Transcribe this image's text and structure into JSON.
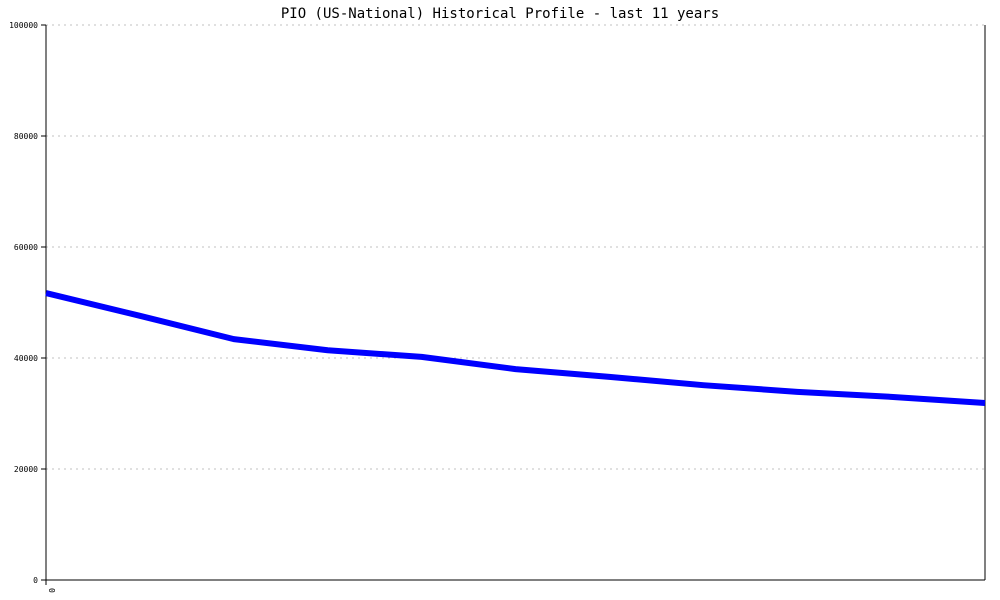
{
  "chart_data": {
    "type": "line",
    "title": "PIO (US-National) Historical Profile - last 11 years",
    "xlabel": "",
    "ylabel": "",
    "x_tick_labels": [
      "0"
    ],
    "x": [
      0,
      1,
      2,
      3,
      4,
      5,
      6,
      7,
      8,
      9,
      10
    ],
    "xlim": [
      0,
      10
    ],
    "ylim": [
      0,
      100000
    ],
    "y_ticks": [
      0,
      20000,
      40000,
      60000,
      80000,
      100000
    ],
    "y_tick_labels": [
      "0",
      "20000",
      "40000",
      "60000",
      "80000",
      "100000"
    ],
    "grid": true,
    "series": [
      {
        "values": [
          51700,
          47600,
          43400,
          41400,
          40200,
          38000,
          36600,
          35100,
          33900,
          33000,
          31900
        ],
        "color": "#0000ff"
      }
    ]
  }
}
